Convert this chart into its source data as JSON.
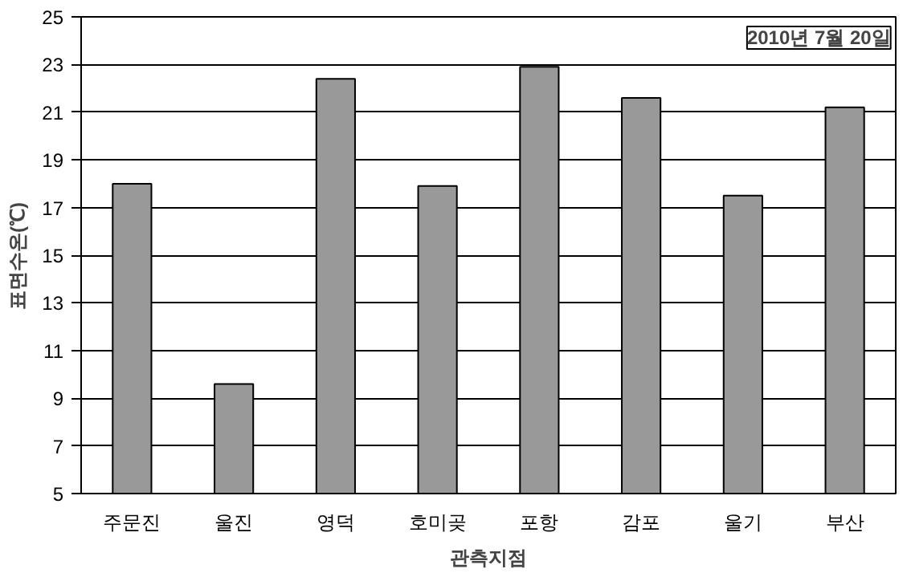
{
  "chart_data": {
    "type": "bar",
    "xlabel": "관측지점",
    "ylabel": "표면수온(℃)",
    "annotations": [
      "2010년 7월 20일"
    ],
    "categories": [
      "주문진",
      "울진",
      "영덕",
      "호미곶",
      "포항",
      "감포",
      "울기",
      "부산"
    ],
    "values": [
      18.0,
      9.6,
      22.4,
      17.9,
      22.9,
      21.6,
      17.5,
      21.2
    ],
    "color": "#999999",
    "ylim": [
      5,
      25
    ],
    "yticks": [
      5,
      7,
      9,
      11,
      13,
      15,
      17,
      19,
      21,
      23,
      25
    ],
    "grid": "y"
  }
}
